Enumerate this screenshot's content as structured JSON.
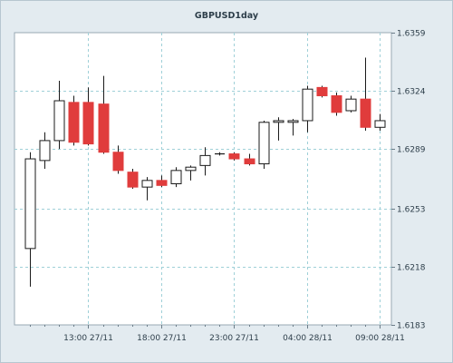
{
  "chart_data": {
    "type": "candlestick",
    "title": "GBPUSD1day",
    "ylim": [
      1.6183,
      1.6359
    ],
    "y_ticks": [
      "1.6359",
      "1.6324",
      "1.6289",
      "1.6253",
      "1.6218",
      "1.6183"
    ],
    "x_ticks": [
      "13:00 27/11",
      "18:00 27/11",
      "23:00 27/11",
      "04:00 28/11",
      "09:00 28/11"
    ],
    "grid": true,
    "colors": {
      "up": "#ffffff",
      "down": "#e03c3c",
      "grid": "#9fd0d8",
      "plot_bg": "#ffffff"
    },
    "candles": [
      {
        "open": 1.6229,
        "high": 1.6287,
        "low": 1.6206,
        "close": 1.6283
      },
      {
        "open": 1.6282,
        "high": 1.6299,
        "low": 1.6277,
        "close": 1.6294
      },
      {
        "open": 1.6294,
        "high": 1.633,
        "low": 1.6289,
        "close": 1.6318
      },
      {
        "open": 1.6317,
        "high": 1.6321,
        "low": 1.6291,
        "close": 1.6293
      },
      {
        "open": 1.6317,
        "high": 1.6326,
        "low": 1.6291,
        "close": 1.6292
      },
      {
        "open": 1.6316,
        "high": 1.6333,
        "low": 1.6286,
        "close": 1.6287
      },
      {
        "open": 1.6287,
        "high": 1.6291,
        "low": 1.6274,
        "close": 1.6276
      },
      {
        "open": 1.6275,
        "high": 1.6277,
        "low": 1.6265,
        "close": 1.6266
      },
      {
        "open": 1.6266,
        "high": 1.6272,
        "low": 1.6258,
        "close": 1.627
      },
      {
        "open": 1.627,
        "high": 1.6273,
        "low": 1.6266,
        "close": 1.6267
      },
      {
        "open": 1.6268,
        "high": 1.6278,
        "low": 1.6266,
        "close": 1.6276
      },
      {
        "open": 1.6276,
        "high": 1.6279,
        "low": 1.627,
        "close": 1.6278
      },
      {
        "open": 1.6279,
        "high": 1.629,
        "low": 1.6273,
        "close": 1.6285
      },
      {
        "open": 1.6286,
        "high": 1.6287,
        "low": 1.6285,
        "close": 1.6286
      },
      {
        "open": 1.6286,
        "high": 1.6287,
        "low": 1.6282,
        "close": 1.6283
      },
      {
        "open": 1.6283,
        "high": 1.6286,
        "low": 1.6279,
        "close": 1.628
      },
      {
        "open": 1.628,
        "high": 1.6306,
        "low": 1.6277,
        "close": 1.6305
      },
      {
        "open": 1.6305,
        "high": 1.6308,
        "low": 1.6294,
        "close": 1.6306
      },
      {
        "open": 1.6305,
        "high": 1.6307,
        "low": 1.6297,
        "close": 1.6306
      },
      {
        "open": 1.6306,
        "high": 1.6327,
        "low": 1.6299,
        "close": 1.6325
      },
      {
        "open": 1.6326,
        "high": 1.6327,
        "low": 1.632,
        "close": 1.6321
      },
      {
        "open": 1.6321,
        "high": 1.6323,
        "low": 1.6309,
        "close": 1.6311
      },
      {
        "open": 1.6312,
        "high": 1.6321,
        "low": 1.6311,
        "close": 1.6319
      },
      {
        "open": 1.6319,
        "high": 1.6344,
        "low": 1.63,
        "close": 1.6302
      },
      {
        "open": 1.6302,
        "high": 1.631,
        "low": 1.63,
        "close": 1.6306
      }
    ]
  }
}
